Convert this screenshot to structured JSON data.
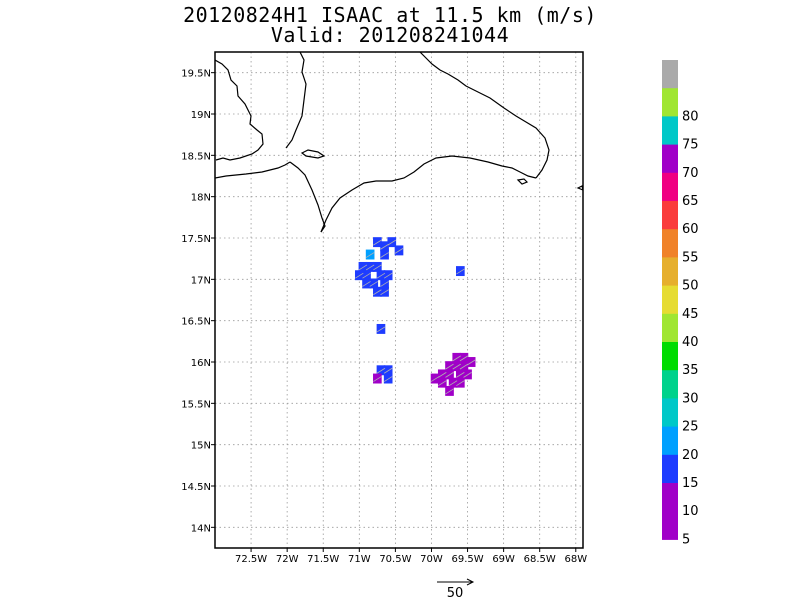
{
  "header": {
    "title_line1": "20120824H1 ISAAC at 11.5 km (m/s)",
    "title_line2": "Valid: 201208241044"
  },
  "map": {
    "lon_range": [
      -73.0,
      -67.9
    ],
    "lat_range": [
      13.75,
      19.75
    ],
    "lon_ticks": [
      {
        "v": -72.5,
        "label": "72.5W"
      },
      {
        "v": -72.0,
        "label": "72W"
      },
      {
        "v": -71.5,
        "label": "71.5W"
      },
      {
        "v": -71.0,
        "label": "71W"
      },
      {
        "v": -70.5,
        "label": "70.5W"
      },
      {
        "v": -70.0,
        "label": "70W"
      },
      {
        "v": -69.5,
        "label": "69.5W"
      },
      {
        "v": -69.0,
        "label": "69W"
      },
      {
        "v": -68.5,
        "label": "68.5W"
      },
      {
        "v": -68.0,
        "label": "68W"
      }
    ],
    "lat_ticks": [
      {
        "v": 19.5,
        "label": "19.5N"
      },
      {
        "v": 19.0,
        "label": "19N"
      },
      {
        "v": 18.5,
        "label": "18.5N"
      },
      {
        "v": 18.0,
        "label": "18N"
      },
      {
        "v": 17.5,
        "label": "17.5N"
      },
      {
        "v": 17.0,
        "label": "17N"
      },
      {
        "v": 16.5,
        "label": "16.5N"
      },
      {
        "v": 16.0,
        "label": "16N"
      },
      {
        "v": 15.5,
        "label": "15.5N"
      },
      {
        "v": 15.0,
        "label": "15N"
      },
      {
        "v": 14.5,
        "label": "14.5N"
      },
      {
        "v": 14.0,
        "label": "14N"
      }
    ],
    "grid": true,
    "colors": {
      "coast": "#000000",
      "grid": "#9a9a9a",
      "vector": "#b0b0b0"
    },
    "wind_patches": [
      {
        "lon": -70.65,
        "lat": 17.4,
        "speed": 13
      },
      {
        "lon": -70.55,
        "lat": 17.45,
        "speed": 13
      },
      {
        "lon": -70.45,
        "lat": 17.35,
        "speed": 14
      },
      {
        "lon": -70.75,
        "lat": 17.45,
        "speed": 12
      },
      {
        "lon": -70.85,
        "lat": 17.3,
        "speed": 17
      },
      {
        "lon": -70.65,
        "lat": 17.3,
        "speed": 13
      },
      {
        "lon": -70.95,
        "lat": 17.15,
        "speed": 13
      },
      {
        "lon": -70.85,
        "lat": 17.15,
        "speed": 13
      },
      {
        "lon": -70.75,
        "lat": 17.15,
        "speed": 13
      },
      {
        "lon": -71.0,
        "lat": 17.05,
        "speed": 13
      },
      {
        "lon": -70.9,
        "lat": 17.05,
        "speed": 13
      },
      {
        "lon": -70.7,
        "lat": 17.05,
        "speed": 13
      },
      {
        "lon": -70.6,
        "lat": 17.05,
        "speed": 13
      },
      {
        "lon": -70.9,
        "lat": 16.95,
        "speed": 12
      },
      {
        "lon": -70.8,
        "lat": 16.95,
        "speed": 13
      },
      {
        "lon": -70.65,
        "lat": 16.95,
        "speed": 13
      },
      {
        "lon": -70.75,
        "lat": 16.85,
        "speed": 13
      },
      {
        "lon": -70.65,
        "lat": 16.85,
        "speed": 13
      },
      {
        "lon": -70.7,
        "lat": 16.4,
        "speed": 13
      },
      {
        "lon": -70.7,
        "lat": 15.9,
        "speed": 13
      },
      {
        "lon": -70.6,
        "lat": 15.9,
        "speed": 13
      },
      {
        "lon": -70.75,
        "lat": 15.8,
        "speed": 4
      },
      {
        "lon": -70.6,
        "lat": 15.8,
        "speed": 13
      },
      {
        "lon": -69.6,
        "lat": 17.1,
        "speed": 13
      },
      {
        "lon": -69.65,
        "lat": 16.05,
        "speed": 8
      },
      {
        "lon": -69.55,
        "lat": 16.05,
        "speed": 8
      },
      {
        "lon": -69.45,
        "lat": 16.0,
        "speed": 8
      },
      {
        "lon": -69.75,
        "lat": 15.95,
        "speed": 8
      },
      {
        "lon": -69.65,
        "lat": 15.95,
        "speed": 8
      },
      {
        "lon": -69.55,
        "lat": 15.95,
        "speed": 8
      },
      {
        "lon": -69.85,
        "lat": 15.85,
        "speed": 8
      },
      {
        "lon": -69.75,
        "lat": 15.85,
        "speed": 8
      },
      {
        "lon": -69.6,
        "lat": 15.85,
        "speed": 8
      },
      {
        "lon": -69.5,
        "lat": 15.85,
        "speed": 8
      },
      {
        "lon": -69.95,
        "lat": 15.8,
        "speed": 8
      },
      {
        "lon": -69.85,
        "lat": 15.75,
        "speed": 8
      },
      {
        "lon": -69.7,
        "lat": 15.75,
        "speed": 8
      },
      {
        "lon": -69.6,
        "lat": 15.75,
        "speed": 8
      },
      {
        "lon": -69.75,
        "lat": 15.65,
        "speed": 8
      }
    ]
  },
  "colorbar": {
    "levels": [
      {
        "label": "",
        "color": "#aaaaaa"
      },
      {
        "label": "80",
        "color": "#a0e632"
      },
      {
        "label": "75",
        "color": "#00c8c8"
      },
      {
        "label": "70",
        "color": "#a000c8"
      },
      {
        "label": "65",
        "color": "#f00082"
      },
      {
        "label": "60",
        "color": "#fa3c3c"
      },
      {
        "label": "55",
        "color": "#f08228"
      },
      {
        "label": "50",
        "color": "#e6af2d"
      },
      {
        "label": "45",
        "color": "#e6dc32"
      },
      {
        "label": "40",
        "color": "#a0e632"
      },
      {
        "label": "35",
        "color": "#00dc00"
      },
      {
        "label": "30",
        "color": "#00d28c"
      },
      {
        "label": "25",
        "color": "#00c8c8"
      },
      {
        "label": "20",
        "color": "#00a0ff"
      },
      {
        "label": "15",
        "color": "#1e3cff"
      },
      {
        "label": "10",
        "color": "#a000c8"
      },
      {
        "label": "5",
        "color": "#a000c8"
      }
    ]
  },
  "vector_legend": {
    "label": "50"
  }
}
